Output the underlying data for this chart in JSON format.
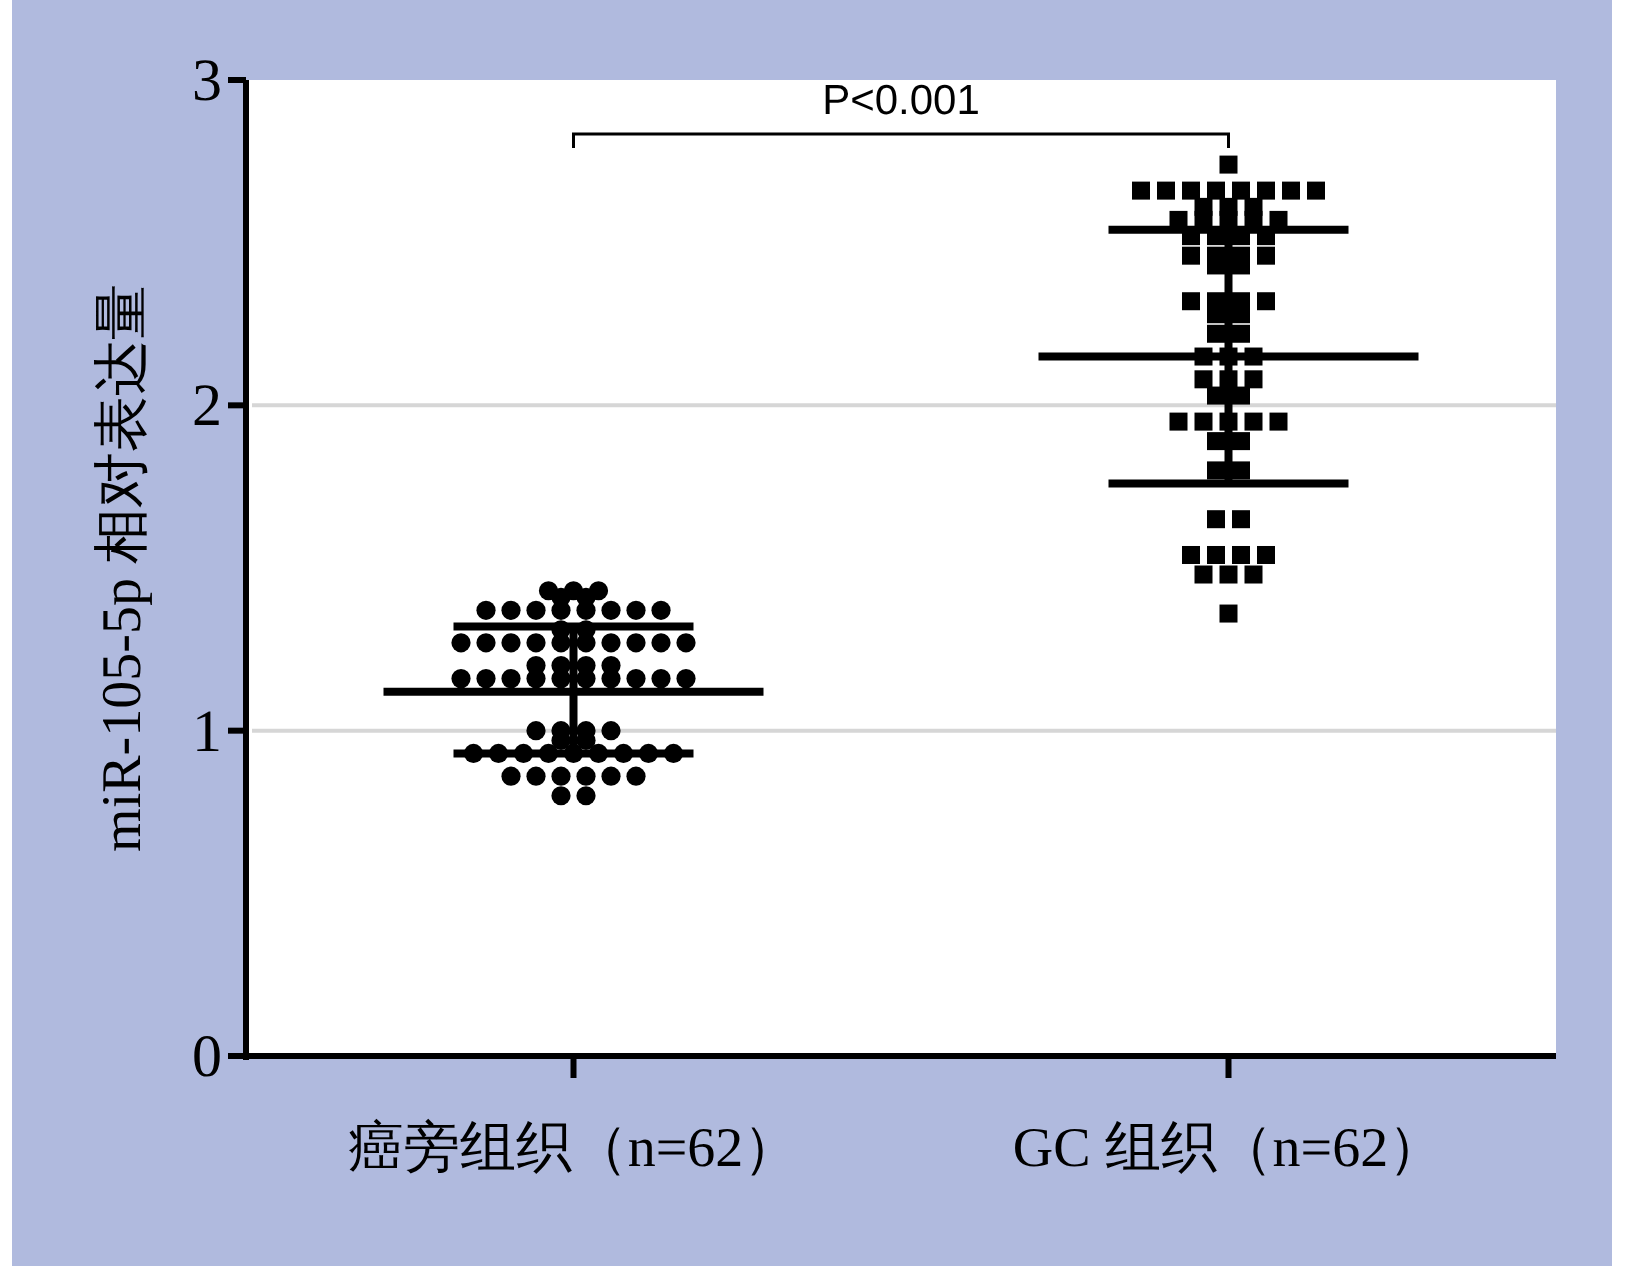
{
  "chart_data": {
    "type": "scatter",
    "categories": [
      "癌旁组织（n=62）",
      "GC 组织（n=62）"
    ],
    "ylabel": "miR-105-5p 相对表达量",
    "ylim": [
      0,
      3
    ],
    "yticks": [
      0,
      1,
      2,
      3
    ],
    "grid": "y",
    "annotations": [
      "P<0.001"
    ],
    "series": [
      {
        "marker": "circle",
        "color": "#000000",
        "x": [
          "癌旁组织（n=62）",
          "癌旁组织（n=62）",
          "癌旁组织（n=62）",
          "癌旁组织（n=62）",
          "癌旁组织（n=62）",
          "癌旁组织（n=62）",
          "癌旁组织（n=62）",
          "癌旁组织（n=62）",
          "癌旁组织（n=62）",
          "癌旁组织（n=62）",
          "癌旁组织（n=62）",
          "癌旁组织（n=62）",
          "癌旁组织（n=62）",
          "癌旁组织（n=62）",
          "癌旁组织（n=62）",
          "癌旁组织（n=62）",
          "癌旁组织（n=62）",
          "癌旁组织（n=62）",
          "癌旁组织（n=62）",
          "癌旁组织（n=62）",
          "癌旁组织（n=62）",
          "癌旁组织（n=62）",
          "癌旁组织（n=62）",
          "癌旁组织（n=62）",
          "癌旁组织（n=62）",
          "癌旁组织（n=62）",
          "癌旁组织（n=62）",
          "癌旁组织（n=62）",
          "癌旁组织（n=62）",
          "癌旁组织（n=62）",
          "癌旁组织（n=62）",
          "癌旁组织（n=62）",
          "癌旁组织（n=62）",
          "癌旁组织（n=62）",
          "癌旁组织（n=62）",
          "癌旁组织（n=62）",
          "癌旁组织（n=62）",
          "癌旁组织（n=62）",
          "癌旁组织（n=62）",
          "癌旁组织（n=62）",
          "癌旁组织（n=62）",
          "癌旁组织（n=62）",
          "癌旁组织（n=62）",
          "癌旁组织（n=62）",
          "癌旁组织（n=62）",
          "癌旁组织（n=62）",
          "癌旁组织（n=62）",
          "癌旁组织（n=62）",
          "癌旁组织（n=62）",
          "癌旁组织（n=62）",
          "癌旁组织（n=62）",
          "癌旁组织（n=62）",
          "癌旁组织（n=62）",
          "癌旁组织（n=62）",
          "癌旁组织（n=62）",
          "癌旁组织（n=62）",
          "癌旁组织（n=62）",
          "癌旁组织（n=62）",
          "癌旁组织（n=62）",
          "癌旁组织（n=62）",
          "癌旁组织（n=62）",
          "癌旁组织（n=62）"
        ],
        "values": [
          1.43,
          1.43,
          1.43,
          1.41,
          1.41,
          1.37,
          1.37,
          1.37,
          1.37,
          1.37,
          1.37,
          1.37,
          1.37,
          1.31,
          1.31,
          1.27,
          1.27,
          1.27,
          1.27,
          1.27,
          1.27,
          1.27,
          1.27,
          1.27,
          1.27,
          1.2,
          1.2,
          1.2,
          1.2,
          1.16,
          1.16,
          1.16,
          1.16,
          1.16,
          1.16,
          1.16,
          1.16,
          1.16,
          1.16,
          1.0,
          1.0,
          1.0,
          1.0,
          0.97,
          0.97,
          0.93,
          0.93,
          0.93,
          0.93,
          0.93,
          0.93,
          0.93,
          0.93,
          0.93,
          0.86,
          0.86,
          0.86,
          0.86,
          0.86,
          0.86,
          0.8,
          0.8
        ]
      },
      {
        "marker": "square",
        "color": "#000000",
        "x": [
          "GC 组织（n=62）",
          "GC 组织（n=62）",
          "GC 组织（n=62）",
          "GC 组织（n=62）",
          "GC 组织（n=62）",
          "GC 组织（n=62）",
          "GC 组织（n=62）",
          "GC 组织（n=62）",
          "GC 组织（n=62）",
          "GC 组织（n=62）",
          "GC 组织（n=62）",
          "GC 组织（n=62）",
          "GC 组织（n=62）",
          "GC 组织（n=62）",
          "GC 组织（n=62）",
          "GC 组织（n=62）",
          "GC 组织（n=62）",
          "GC 组织（n=62）",
          "GC 组织（n=62）",
          "GC 组织（n=62）",
          "GC 组织（n=62）",
          "GC 组织（n=62）",
          "GC 组织（n=62）",
          "GC 组织（n=62）",
          "GC 组织（n=62）",
          "GC 组织（n=62）",
          "GC 组织（n=62）",
          "GC 组织（n=62）",
          "GC 组织（n=62）",
          "GC 组织（n=62）",
          "GC 组织（n=62）",
          "GC 组织（n=62）",
          "GC 组织（n=62）",
          "GC 组织（n=62）",
          "GC 组织（n=62）",
          "GC 组织（n=62）",
          "GC 组织（n=62）",
          "GC 组织（n=62）",
          "GC 组织（n=62）",
          "GC 组织（n=62）",
          "GC 组织（n=62）",
          "GC 组织（n=62）",
          "GC 组织（n=62）",
          "GC 组织（n=62）",
          "GC 组织（n=62）",
          "GC 组织（n=62）",
          "GC 组织（n=62）",
          "GC 组织（n=62）",
          "GC 组织（n=62）",
          "GC 组织（n=62）",
          "GC 组织（n=62）",
          "GC 组织（n=62）",
          "GC 组织（n=62）",
          "GC 组织（n=62）",
          "GC 组织（n=62）",
          "GC 组织（n=62）",
          "GC 组织（n=62）",
          "GC 组织（n=62）",
          "GC 组织（n=62）",
          "GC 组织（n=62）",
          "GC 组织（n=62）",
          "GC 组织（n=62）"
        ],
        "values": [
          2.74,
          2.66,
          2.66,
          2.66,
          2.66,
          2.66,
          2.66,
          2.66,
          2.66,
          2.61,
          2.61,
          2.61,
          2.57,
          2.57,
          2.57,
          2.57,
          2.57,
          2.52,
          2.52,
          2.52,
          2.52,
          2.46,
          2.46,
          2.46,
          2.46,
          2.43,
          2.43,
          2.32,
          2.32,
          2.32,
          2.32,
          2.28,
          2.28,
          2.22,
          2.22,
          2.15,
          2.15,
          2.15,
          2.08,
          2.08,
          2.08,
          2.03,
          2.03,
          1.95,
          1.95,
          1.95,
          1.95,
          1.95,
          1.89,
          1.89,
          1.8,
          1.8,
          1.65,
          1.65,
          1.54,
          1.54,
          1.54,
          1.54,
          1.48,
          1.48,
          1.48,
          1.36
        ]
      },
      {
        "type": "box",
        "color": "#000000",
        "boxes": [
          {
            "low": 0.93,
            "q1": 1.12,
            "median": 1.12,
            "q3": 1.12,
            "high": 1.32
          },
          {
            "low": 1.76,
            "q1": 2.15,
            "median": 2.15,
            "q3": 2.15,
            "high": 2.54
          }
        ]
      }
    ]
  }
}
